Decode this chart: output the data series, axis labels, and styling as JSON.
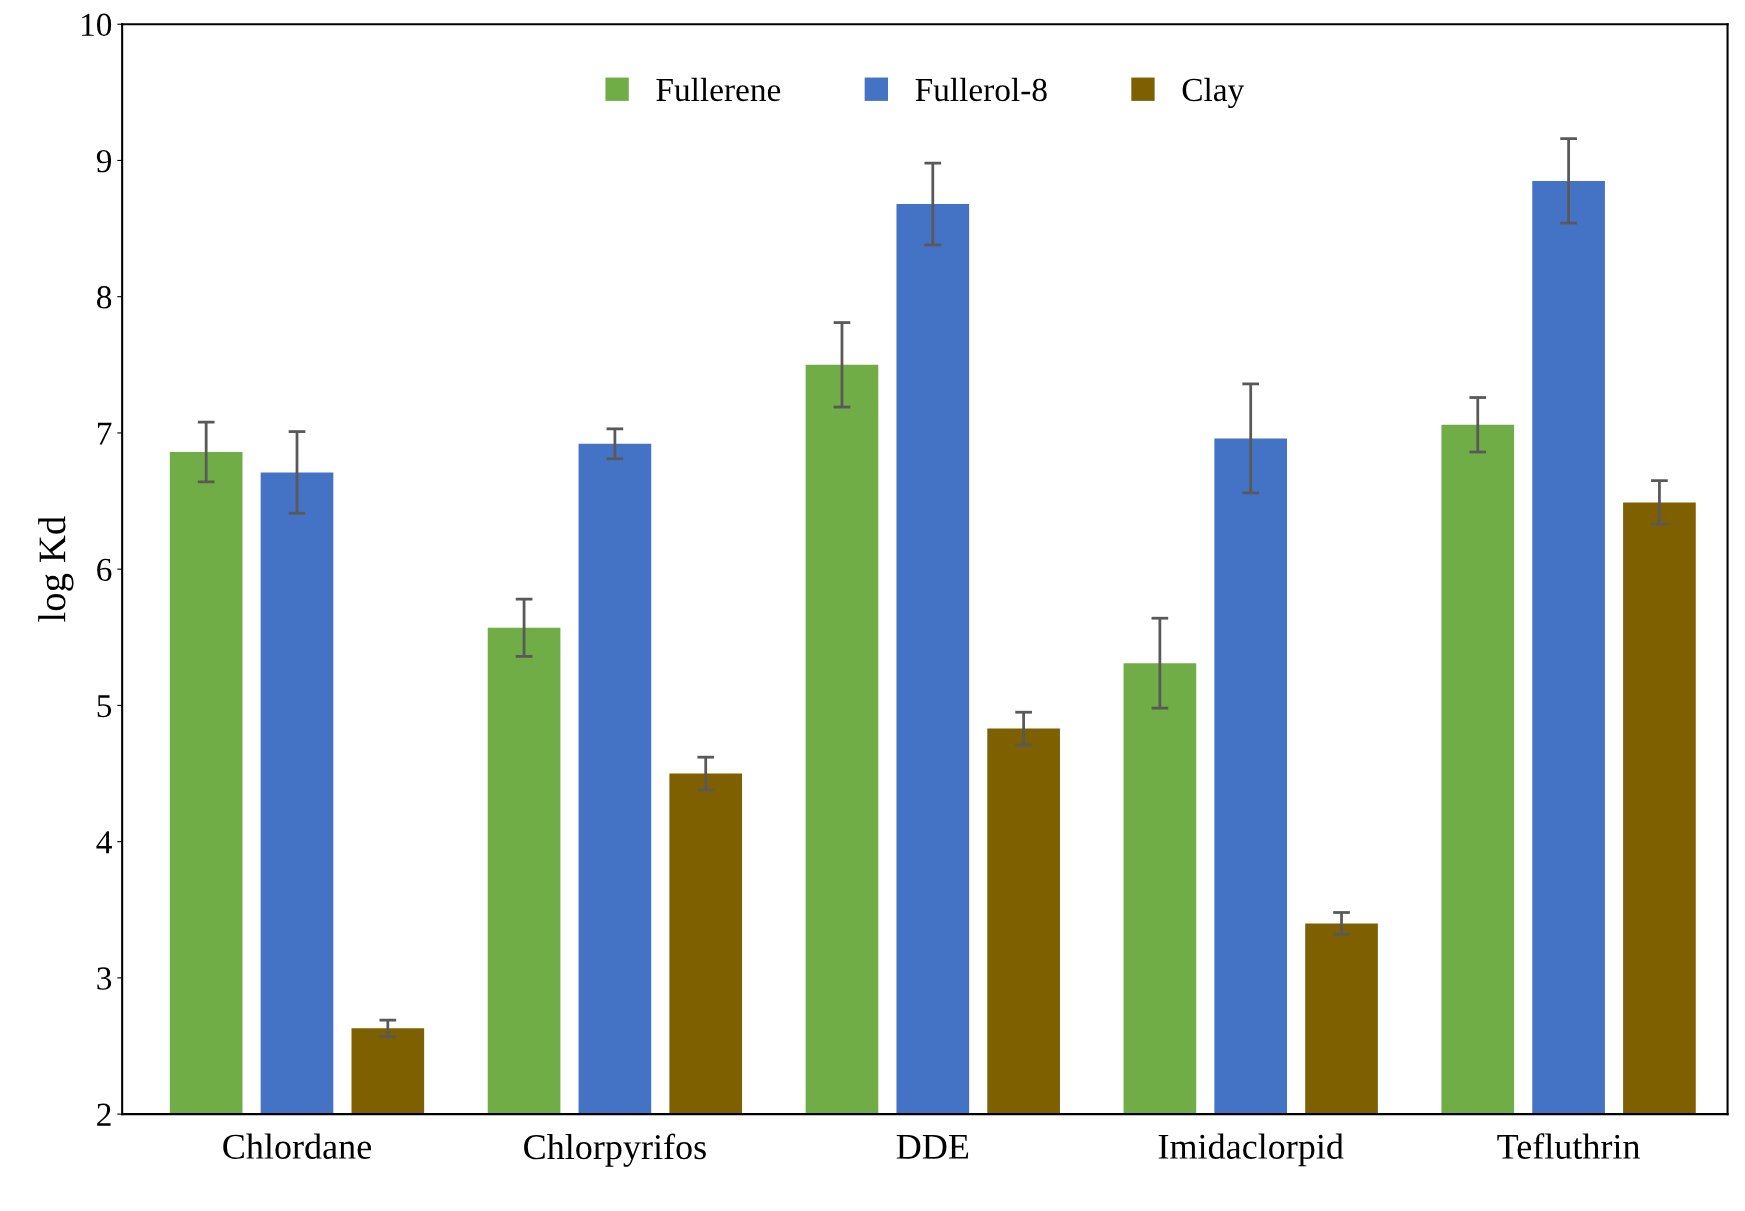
{
  "chart_data": {
    "type": "bar",
    "ylabel": "log Kd",
    "categories": [
      "Chlordane",
      "Chlorpyrifos",
      "DDE",
      "Imidaclorpid",
      "Tefluthrin"
    ],
    "series": [
      {
        "name": "Fullerene",
        "color": "#70ad47",
        "values": [
          6.86,
          5.57,
          7.5,
          5.31,
          7.06
        ],
        "errors": [
          0.22,
          0.21,
          0.31,
          0.33,
          0.2
        ]
      },
      {
        "name": "Fullerol-8",
        "color": "#4472c4",
        "values": [
          6.71,
          6.92,
          8.68,
          6.96,
          8.85
        ],
        "errors": [
          0.3,
          0.11,
          0.3,
          0.4,
          0.31
        ]
      },
      {
        "name": "Clay",
        "color": "#7f6000",
        "values": [
          2.63,
          4.5,
          4.83,
          3.4,
          6.49
        ],
        "errors": [
          0.06,
          0.12,
          0.12,
          0.08,
          0.16
        ]
      }
    ],
    "ylim": [
      2,
      10
    ],
    "yticks": [
      2,
      3,
      4,
      5,
      6,
      7,
      8,
      9,
      10
    ],
    "grid": false,
    "legend": "top"
  }
}
